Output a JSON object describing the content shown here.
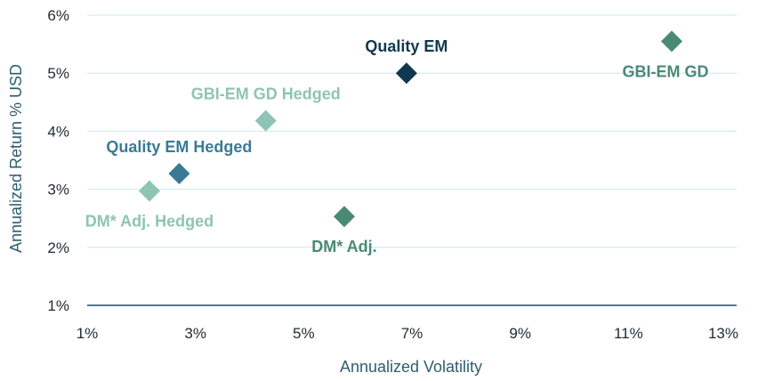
{
  "chart_data": {
    "type": "scatter",
    "xlabel": "Annualized Volatility",
    "ylabel": "Annualized Return % USD",
    "xlim": [
      1,
      13
    ],
    "ylim": [
      1,
      6
    ],
    "x_ticks": [
      "1%",
      "3%",
      "5%",
      "7%",
      "9%",
      "11%",
      "13%"
    ],
    "y_ticks": [
      "1%",
      "2%",
      "3%",
      "4%",
      "5%",
      "6%"
    ],
    "grid": "horizontal",
    "marker": "diamond",
    "points": [
      {
        "label": "Quality EM",
        "x": 6.9,
        "y": 5.0,
        "color": "#10384f",
        "label_pos": "above"
      },
      {
        "label": "GBI-EM GD",
        "x": 11.8,
        "y": 5.55,
        "color": "#4a8a74",
        "label_pos": "below"
      },
      {
        "label": "GBI-EM GD Hedged",
        "x": 4.3,
        "y": 4.18,
        "color": "#8ec4b3",
        "label_pos": "above"
      },
      {
        "label": "Quality EM Hedged",
        "x": 2.7,
        "y": 3.27,
        "color": "#3a7a96",
        "label_pos": "above"
      },
      {
        "label": "DM* Adj. Hedged",
        "x": 2.15,
        "y": 2.97,
        "color": "#8ec4b3",
        "label_pos": "below"
      },
      {
        "label": "DM* Adj.",
        "x": 5.75,
        "y": 2.53,
        "color": "#4a8a74",
        "label_pos": "below"
      }
    ]
  }
}
